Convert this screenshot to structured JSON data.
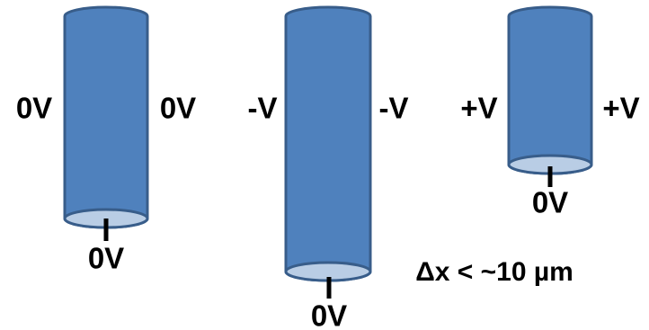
{
  "cylinders": [
    {
      "left_label": "0V",
      "right_label": "0V",
      "bottom_label": "0V"
    },
    {
      "left_label": "-V",
      "right_label": "-V",
      "bottom_label": "0V"
    },
    {
      "left_label": "+V",
      "right_label": "+V",
      "bottom_label": "0V"
    }
  ],
  "note": "Δx < ~10 µm"
}
